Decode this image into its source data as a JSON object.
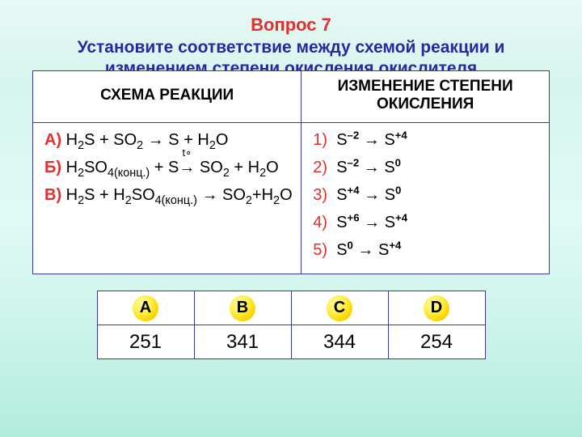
{
  "header": {
    "question_number": "Вопрос 7",
    "question_text": "Установите соответствие между схемой реакции и изменением степени окисления окислителя"
  },
  "table": {
    "left_header": "СХЕМА РЕАКЦИИ",
    "right_header": "ИЗМЕНЕНИЕ СТЕПЕНИ ОКИСЛЕНИЯ",
    "reactions": [
      {
        "label": "А)",
        "formula_html": "H<sub>2</sub>S + SO<sub>2</sub> → S + H<sub>2</sub>O"
      },
      {
        "label": "Б)",
        "formula_html": "H<sub>2</sub>SO<sub>4(конц.)</sub> + S<span class='t-over'><span class='tlabel'>t∘</span>→</span> SO<sub>2</sub> + H<sub>2</sub>O"
      },
      {
        "label": "В)",
        "formula_html": "H<sub>2</sub>S + H<sub>2</sub>SO<sub>4(конц.)</sub> → SO<sub>2</sub>+H<sub>2</sub>O"
      }
    ],
    "options": [
      {
        "num": "1)",
        "text_html": "S<sup>–2</sup> → S<sup>+4</sup>"
      },
      {
        "num": "2)",
        "text_html": "S<sup>–2</sup> → S<sup>0</sup>"
      },
      {
        "num": "3)",
        "text_html": "S<sup>+4</sup> → S<sup>0</sup>"
      },
      {
        "num": "4)",
        "text_html": "S<sup>+6</sup> → S<sup>+4</sup>"
      },
      {
        "num": "5)",
        "text_html": "S<sup>0</sup> → S<sup>+4</sup>"
      }
    ]
  },
  "answers": {
    "labels": [
      "A",
      "B",
      "C",
      "D"
    ],
    "values": [
      "251",
      "341",
      "344",
      "254"
    ]
  },
  "style": {
    "border_color": "#3a3a9c",
    "question_num_color": "#e03030",
    "question_text_color": "#2828a0",
    "circle_gradient_inner": "#fff89a",
    "circle_gradient_outer": "#e0b000"
  }
}
